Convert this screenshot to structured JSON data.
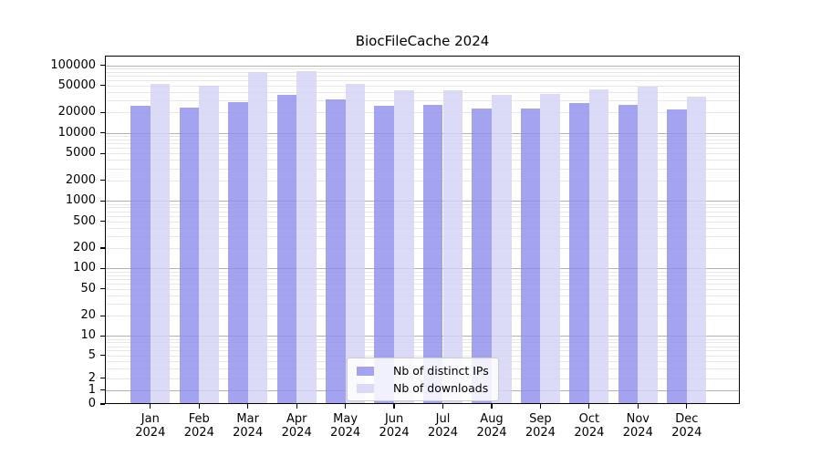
{
  "chart_data": {
    "type": "bar",
    "title": "BiocFileCache 2024",
    "categories": [
      {
        "month": "Jan",
        "year": "2024"
      },
      {
        "month": "Feb",
        "year": "2024"
      },
      {
        "month": "Mar",
        "year": "2024"
      },
      {
        "month": "Apr",
        "year": "2024"
      },
      {
        "month": "May",
        "year": "2024"
      },
      {
        "month": "Jun",
        "year": "2024"
      },
      {
        "month": "Jul",
        "year": "2024"
      },
      {
        "month": "Aug",
        "year": "2024"
      },
      {
        "month": "Sep",
        "year": "2024"
      },
      {
        "month": "Oct",
        "year": "2024"
      },
      {
        "month": "Nov",
        "year": "2024"
      },
      {
        "month": "Dec",
        "year": "2024"
      }
    ],
    "series": [
      {
        "name": "Nb of distinct IPs",
        "key": "distinct-ips",
        "color_hex": "#a5a5f1",
        "color_rgba": "rgba(143,143,237,0.82)",
        "values": [
          25100,
          23400,
          28500,
          36400,
          30900,
          25300,
          26400,
          22700,
          23100,
          27300,
          26100,
          22200
        ]
      },
      {
        "name": "Nb of downloads",
        "key": "downloads",
        "color_hex": "#dadaf8",
        "color_rgba": "rgba(211,211,246,0.82)",
        "values": [
          53400,
          50200,
          79200,
          82500,
          53400,
          42700,
          42700,
          36800,
          37600,
          44000,
          48300,
          34200
        ]
      }
    ],
    "y_axis": {
      "scale": "pseudo-log (asinh)",
      "ticks": [
        100000,
        50000,
        20000,
        10000,
        5000,
        2000,
        1000,
        500,
        200,
        100,
        50,
        20,
        10,
        5,
        2,
        1,
        0
      ],
      "range": [
        0,
        140000
      ]
    },
    "grid": {
      "major_color": "#b2b2b2",
      "minor_color": "#e7e7e7"
    },
    "legend": {
      "position": "bottom-center",
      "background": "#ffffff",
      "border_color": "#cccccc"
    }
  }
}
